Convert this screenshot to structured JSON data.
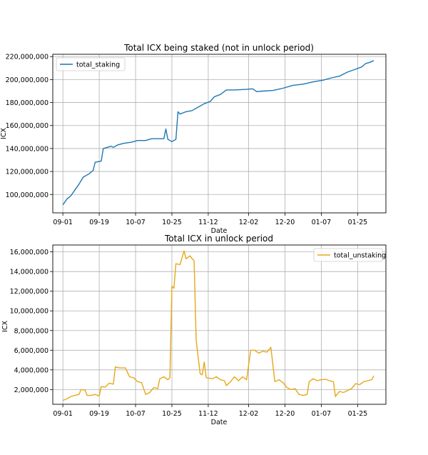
{
  "chart_data": [
    {
      "type": "line",
      "title": "Total ICX being staked (not in unlock period)",
      "xlabel": "Date",
      "ylabel": "ICX",
      "x_ticks": [
        "09-01",
        "09-19",
        "10-07",
        "10-25",
        "11-12",
        "12-02",
        "12-20",
        "01-07",
        "01-25"
      ],
      "y_ticks": [
        "100,000,000",
        "120,000,000",
        "140,000,000",
        "160,000,000",
        "180,000,000",
        "200,000,000",
        "220,000,000"
      ],
      "y_tick_values": [
        100000000,
        120000000,
        140000000,
        160000000,
        180000000,
        200000000,
        220000000
      ],
      "ylim": [
        84000000,
        222000000
      ],
      "grid": true,
      "legend_position": "top-left",
      "series": [
        {
          "name": "total_staking",
          "color": "#1f77b4",
          "points": [
            [
              "09-01",
              91000000
            ],
            [
              "09-03",
              96000000
            ],
            [
              "09-05",
              99000000
            ],
            [
              "09-07",
              104000000
            ],
            [
              "09-09",
              109000000
            ],
            [
              "09-11",
              115000000
            ],
            [
              "09-14",
              118000000
            ],
            [
              "09-16",
              121000000
            ],
            [
              "09-17",
              128000000
            ],
            [
              "09-20",
              129000000
            ],
            [
              "09-21",
              140000000
            ],
            [
              "09-25",
              142000000
            ],
            [
              "09-26",
              141000000
            ],
            [
              "09-28",
              143000000
            ],
            [
              "10-01",
              144500000
            ],
            [
              "10-05",
              145500000
            ],
            [
              "10-08",
              147000000
            ],
            [
              "10-12",
              147000000
            ],
            [
              "10-15",
              148500000
            ],
            [
              "10-18",
              148500000
            ],
            [
              "10-21",
              148500000
            ],
            [
              "10-22",
              157000000
            ],
            [
              "10-23",
              148000000
            ],
            [
              "10-24",
              147000000
            ],
            [
              "10-25",
              146000000
            ],
            [
              "10-27",
              148000000
            ],
            [
              "10-28",
              172000000
            ],
            [
              "10-29",
              170000000
            ],
            [
              "11-01",
              172000000
            ],
            [
              "11-04",
              173000000
            ],
            [
              "11-07",
              176000000
            ],
            [
              "11-10",
              179000000
            ],
            [
              "11-13",
              181000000
            ],
            [
              "11-15",
              185000000
            ],
            [
              "11-18",
              187000000
            ],
            [
              "11-21",
              191000000
            ],
            [
              "11-25",
              191000000
            ],
            [
              "12-01",
              191500000
            ],
            [
              "12-04",
              192000000
            ],
            [
              "12-06",
              189500000
            ],
            [
              "12-09",
              190000000
            ],
            [
              "12-14",
              190500000
            ],
            [
              "12-19",
              192500000
            ],
            [
              "12-24",
              195000000
            ],
            [
              "12-29",
              196000000
            ],
            [
              "01-03",
              198000000
            ],
            [
              "01-08",
              199500000
            ],
            [
              "01-12",
              201500000
            ],
            [
              "01-16",
              203000000
            ],
            [
              "01-20",
              206500000
            ],
            [
              "01-24",
              209000000
            ],
            [
              "01-27",
              211000000
            ],
            [
              "01-29",
              214000000
            ],
            [
              "01-31",
              215000000
            ],
            [
              "02-02",
              216500000
            ]
          ]
        }
      ]
    },
    {
      "type": "line",
      "title": "Total ICX in unlock period",
      "xlabel": "Date",
      "ylabel": "ICX",
      "x_ticks": [
        "09-01",
        "09-19",
        "10-07",
        "10-25",
        "11-12",
        "12-02",
        "12-20",
        "01-07",
        "01-25"
      ],
      "y_ticks": [
        "2,000,000",
        "4,000,000",
        "6,000,000",
        "8,000,000",
        "10,000,000",
        "12,000,000",
        "14,000,000",
        "16,000,000"
      ],
      "y_tick_values": [
        2000000,
        4000000,
        6000000,
        8000000,
        10000000,
        12000000,
        14000000,
        16000000
      ],
      "ylim": [
        500000,
        16700000
      ],
      "grid": true,
      "legend_position": "top-right",
      "series": [
        {
          "name": "total_unstaking",
          "color": "#e6a817",
          "points": [
            [
              "09-01",
              900000
            ],
            [
              "09-03",
              1050000
            ],
            [
              "09-05",
              1300000
            ],
            [
              "09-07",
              1400000
            ],
            [
              "09-09",
              1500000
            ],
            [
              "09-10",
              2000000
            ],
            [
              "09-12",
              1950000
            ],
            [
              "09-13",
              1400000
            ],
            [
              "09-15",
              1400000
            ],
            [
              "09-17",
              1500000
            ],
            [
              "09-19",
              1350000
            ],
            [
              "09-20",
              2300000
            ],
            [
              "09-22",
              2250000
            ],
            [
              "09-24",
              2650000
            ],
            [
              "09-26",
              2550000
            ],
            [
              "09-27",
              4300000
            ],
            [
              "09-29",
              4200000
            ],
            [
              "10-02",
              4200000
            ],
            [
              "10-04",
              3300000
            ],
            [
              "10-06",
              3200000
            ],
            [
              "10-08",
              2800000
            ],
            [
              "10-10",
              2700000
            ],
            [
              "10-12",
              1500000
            ],
            [
              "10-14",
              1700000
            ],
            [
              "10-16",
              2200000
            ],
            [
              "10-18",
              2100000
            ],
            [
              "10-19",
              3100000
            ],
            [
              "10-21",
              3300000
            ],
            [
              "10-23",
              3000000
            ],
            [
              "10-24",
              3200000
            ],
            [
              "10-25",
              12500000
            ],
            [
              "10-26",
              12300000
            ],
            [
              "10-27",
              14800000
            ],
            [
              "10-29",
              14700000
            ],
            [
              "10-31",
              16100000
            ],
            [
              "11-01",
              15300000
            ],
            [
              "11-03",
              15600000
            ],
            [
              "11-04",
              15300000
            ],
            [
              "11-05",
              15100000
            ],
            [
              "11-06",
              7000000
            ],
            [
              "11-08",
              3600000
            ],
            [
              "11-09",
              3500000
            ],
            [
              "11-10",
              4800000
            ],
            [
              "11-11",
              3200000
            ],
            [
              "11-14",
              3100000
            ],
            [
              "11-16",
              3300000
            ],
            [
              "11-18",
              3000000
            ],
            [
              "11-20",
              2900000
            ],
            [
              "11-21",
              2400000
            ],
            [
              "11-23",
              2800000
            ],
            [
              "11-25",
              3300000
            ],
            [
              "11-27",
              2900000
            ],
            [
              "11-29",
              3300000
            ],
            [
              "12-01",
              3000000
            ],
            [
              "12-03",
              6000000
            ],
            [
              "12-05",
              6000000
            ],
            [
              "12-07",
              5700000
            ],
            [
              "12-09",
              5900000
            ],
            [
              "12-11",
              5800000
            ],
            [
              "12-13",
              6300000
            ],
            [
              "12-15",
              2800000
            ],
            [
              "12-17",
              3000000
            ],
            [
              "12-19",
              2700000
            ],
            [
              "12-21",
              2200000
            ],
            [
              "12-23",
              2000000
            ],
            [
              "12-25",
              2100000
            ],
            [
              "12-27",
              1500000
            ],
            [
              "12-29",
              1400000
            ],
            [
              "12-31",
              1500000
            ],
            [
              "01-01",
              2800000
            ],
            [
              "01-03",
              3100000
            ],
            [
              "01-05",
              2900000
            ],
            [
              "01-07",
              3000000
            ],
            [
              "01-09",
              3050000
            ],
            [
              "01-11",
              2900000
            ],
            [
              "01-13",
              2800000
            ],
            [
              "01-14",
              1300000
            ],
            [
              "01-16",
              1800000
            ],
            [
              "01-18",
              1700000
            ],
            [
              "01-20",
              1900000
            ],
            [
              "01-22",
              2100000
            ],
            [
              "01-24",
              2600000
            ],
            [
              "01-26",
              2500000
            ],
            [
              "01-28",
              2800000
            ],
            [
              "01-30",
              2900000
            ],
            [
              "02-01",
              3000000
            ],
            [
              "02-02",
              3400000
            ]
          ]
        }
      ]
    }
  ]
}
